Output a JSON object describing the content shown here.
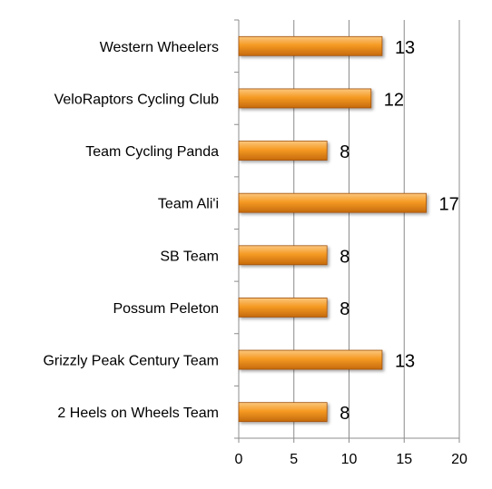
{
  "chart_data": {
    "type": "bar",
    "orientation": "horizontal",
    "categories": [
      "Western Wheelers",
      "VeloRaptors Cycling Club",
      "Team Cycling Panda",
      "Team Ali'i",
      "SB Team",
      "Possum Peleton",
      "Grizzly Peak Century Team",
      "2 Heels on Wheels Team"
    ],
    "values": [
      13,
      12,
      8,
      17,
      8,
      8,
      13,
      8
    ],
    "data_labels": [
      "13",
      "12",
      "8",
      "17",
      "8",
      "8",
      "13",
      "8"
    ],
    "xlim": [
      0,
      20
    ],
    "x_ticks": [
      0,
      5,
      10,
      15,
      20
    ],
    "x_tick_labels": [
      "0",
      "5",
      "10",
      "15",
      "20"
    ],
    "grid": "vertical",
    "legend": "none",
    "bar_color": "#F59A23",
    "bar_edge_color": "#A0500A",
    "grid_color": "#8C8C8C"
  }
}
